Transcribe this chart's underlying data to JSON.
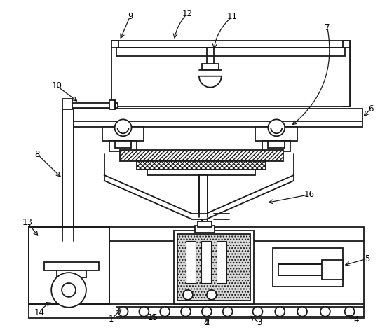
{
  "background_color": "#ffffff",
  "line_color": "#1a1a1a",
  "line_width": 1.3,
  "labels": [
    "1",
    "2",
    "3",
    "4",
    "5",
    "6",
    "7",
    "8",
    "9",
    "10",
    "11",
    "12",
    "13",
    "14",
    "15",
    "16"
  ]
}
